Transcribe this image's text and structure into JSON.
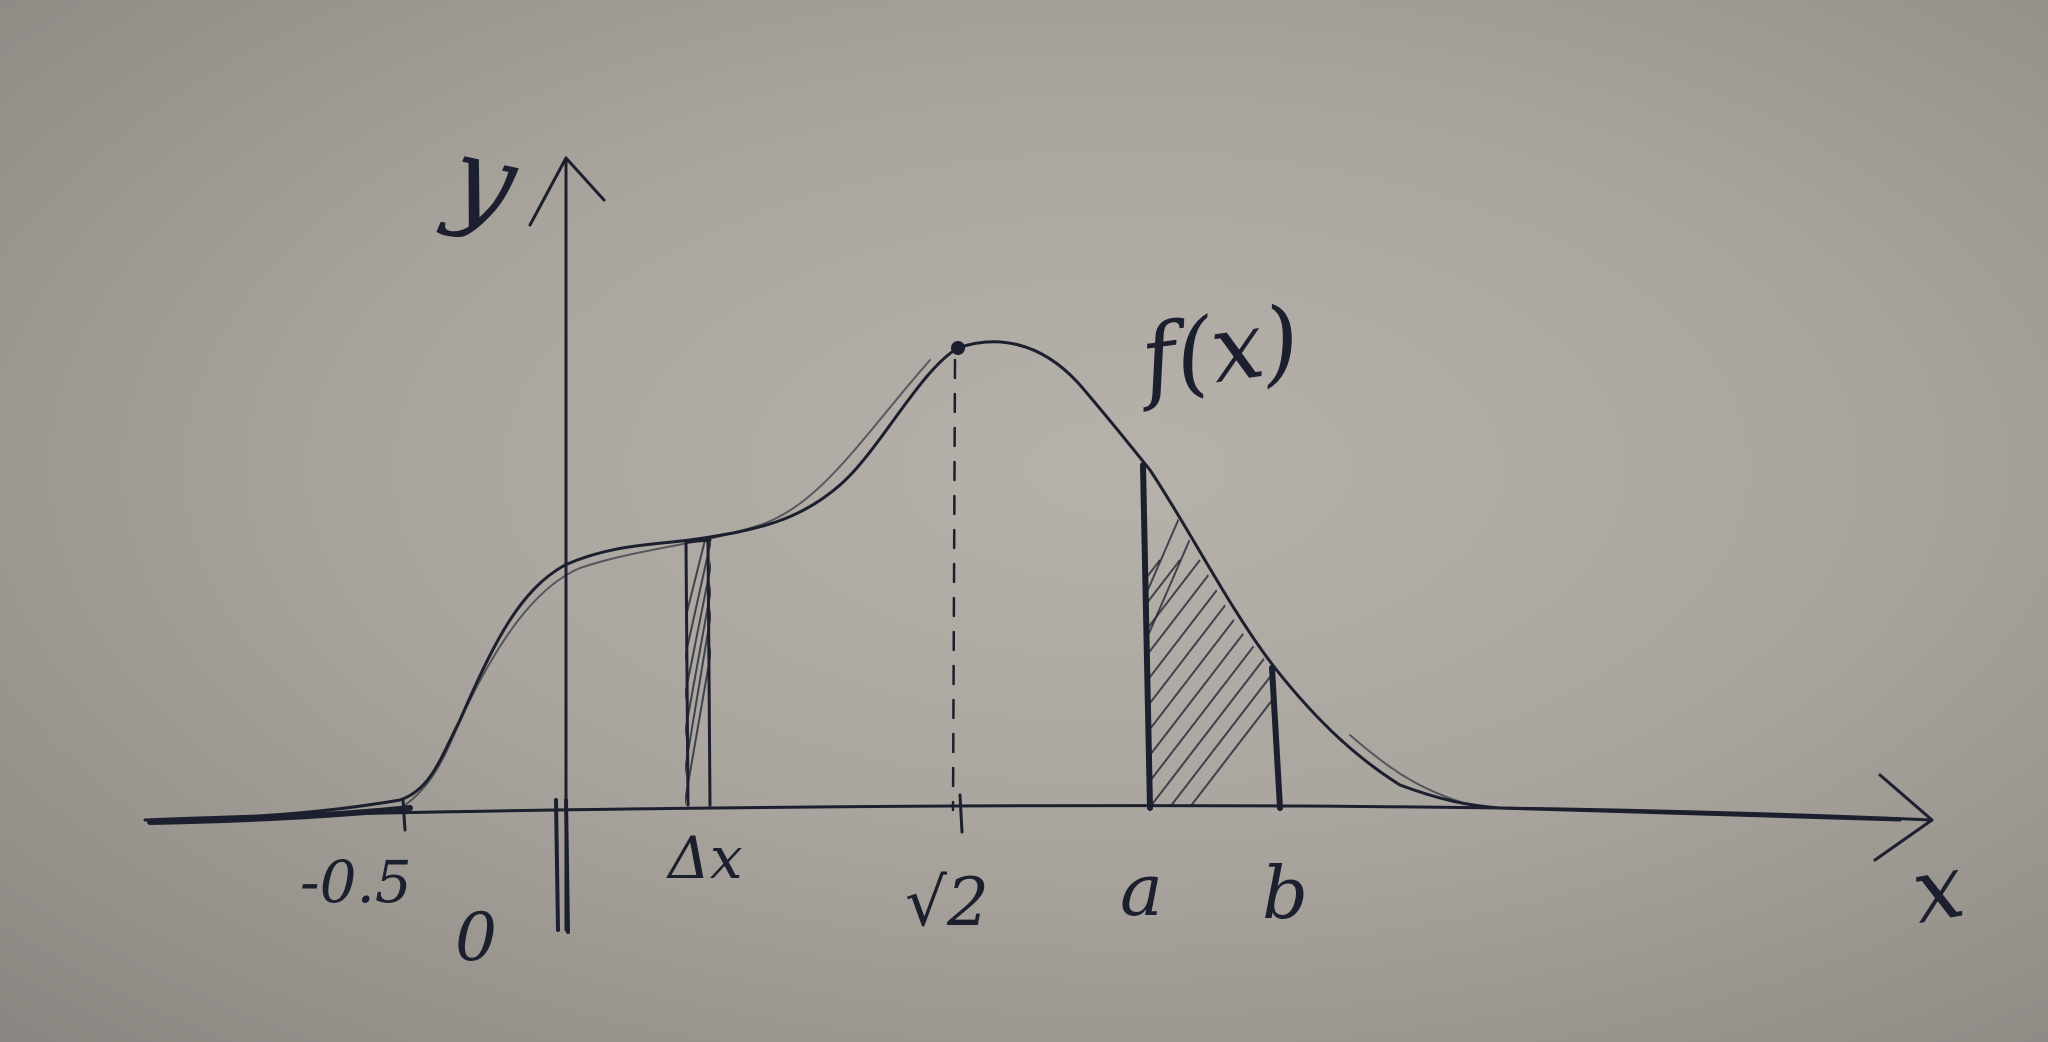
{
  "axes": {
    "x_label": "x",
    "y_label": "y"
  },
  "function_label": "f(x)",
  "ticks": {
    "neg_half": "-0.5",
    "origin": "0",
    "delta_x": "Δx",
    "sqrt2": "√2",
    "a": "a",
    "b": "b"
  },
  "colors": {
    "ink": "#1c1f2e",
    "paper": "#aaa59f"
  }
}
